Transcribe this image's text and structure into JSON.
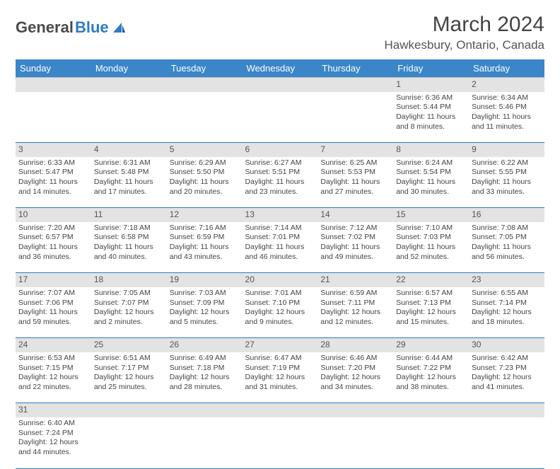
{
  "logo": {
    "text1": "General",
    "text2": "Blue"
  },
  "title": "March 2024",
  "location": "Hawkesbury, Ontario, Canada",
  "colors": {
    "header_bg": "#3a86c8",
    "daynum_bg": "#e3e3e3",
    "rule": "#2d7bc4"
  },
  "weekdays": [
    "Sunday",
    "Monday",
    "Tuesday",
    "Wednesday",
    "Thursday",
    "Friday",
    "Saturday"
  ],
  "weeks": [
    [
      null,
      null,
      null,
      null,
      null,
      {
        "n": "1",
        "sr": "Sunrise: 6:36 AM",
        "ss": "Sunset: 5:44 PM",
        "dl": "Daylight: 11 hours and 8 minutes."
      },
      {
        "n": "2",
        "sr": "Sunrise: 6:34 AM",
        "ss": "Sunset: 5:46 PM",
        "dl": "Daylight: 11 hours and 11 minutes."
      }
    ],
    [
      {
        "n": "3",
        "sr": "Sunrise: 6:33 AM",
        "ss": "Sunset: 5:47 PM",
        "dl": "Daylight: 11 hours and 14 minutes."
      },
      {
        "n": "4",
        "sr": "Sunrise: 6:31 AM",
        "ss": "Sunset: 5:48 PM",
        "dl": "Daylight: 11 hours and 17 minutes."
      },
      {
        "n": "5",
        "sr": "Sunrise: 6:29 AM",
        "ss": "Sunset: 5:50 PM",
        "dl": "Daylight: 11 hours and 20 minutes."
      },
      {
        "n": "6",
        "sr": "Sunrise: 6:27 AM",
        "ss": "Sunset: 5:51 PM",
        "dl": "Daylight: 11 hours and 23 minutes."
      },
      {
        "n": "7",
        "sr": "Sunrise: 6:25 AM",
        "ss": "Sunset: 5:53 PM",
        "dl": "Daylight: 11 hours and 27 minutes."
      },
      {
        "n": "8",
        "sr": "Sunrise: 6:24 AM",
        "ss": "Sunset: 5:54 PM",
        "dl": "Daylight: 11 hours and 30 minutes."
      },
      {
        "n": "9",
        "sr": "Sunrise: 6:22 AM",
        "ss": "Sunset: 5:55 PM",
        "dl": "Daylight: 11 hours and 33 minutes."
      }
    ],
    [
      {
        "n": "10",
        "sr": "Sunrise: 7:20 AM",
        "ss": "Sunset: 6:57 PM",
        "dl": "Daylight: 11 hours and 36 minutes."
      },
      {
        "n": "11",
        "sr": "Sunrise: 7:18 AM",
        "ss": "Sunset: 6:58 PM",
        "dl": "Daylight: 11 hours and 40 minutes."
      },
      {
        "n": "12",
        "sr": "Sunrise: 7:16 AM",
        "ss": "Sunset: 6:59 PM",
        "dl": "Daylight: 11 hours and 43 minutes."
      },
      {
        "n": "13",
        "sr": "Sunrise: 7:14 AM",
        "ss": "Sunset: 7:01 PM",
        "dl": "Daylight: 11 hours and 46 minutes."
      },
      {
        "n": "14",
        "sr": "Sunrise: 7:12 AM",
        "ss": "Sunset: 7:02 PM",
        "dl": "Daylight: 11 hours and 49 minutes."
      },
      {
        "n": "15",
        "sr": "Sunrise: 7:10 AM",
        "ss": "Sunset: 7:03 PM",
        "dl": "Daylight: 11 hours and 52 minutes."
      },
      {
        "n": "16",
        "sr": "Sunrise: 7:08 AM",
        "ss": "Sunset: 7:05 PM",
        "dl": "Daylight: 11 hours and 56 minutes."
      }
    ],
    [
      {
        "n": "17",
        "sr": "Sunrise: 7:07 AM",
        "ss": "Sunset: 7:06 PM",
        "dl": "Daylight: 11 hours and 59 minutes."
      },
      {
        "n": "18",
        "sr": "Sunrise: 7:05 AM",
        "ss": "Sunset: 7:07 PM",
        "dl": "Daylight: 12 hours and 2 minutes."
      },
      {
        "n": "19",
        "sr": "Sunrise: 7:03 AM",
        "ss": "Sunset: 7:09 PM",
        "dl": "Daylight: 12 hours and 5 minutes."
      },
      {
        "n": "20",
        "sr": "Sunrise: 7:01 AM",
        "ss": "Sunset: 7:10 PM",
        "dl": "Daylight: 12 hours and 9 minutes."
      },
      {
        "n": "21",
        "sr": "Sunrise: 6:59 AM",
        "ss": "Sunset: 7:11 PM",
        "dl": "Daylight: 12 hours and 12 minutes."
      },
      {
        "n": "22",
        "sr": "Sunrise: 6:57 AM",
        "ss": "Sunset: 7:13 PM",
        "dl": "Daylight: 12 hours and 15 minutes."
      },
      {
        "n": "23",
        "sr": "Sunrise: 6:55 AM",
        "ss": "Sunset: 7:14 PM",
        "dl": "Daylight: 12 hours and 18 minutes."
      }
    ],
    [
      {
        "n": "24",
        "sr": "Sunrise: 6:53 AM",
        "ss": "Sunset: 7:15 PM",
        "dl": "Daylight: 12 hours and 22 minutes."
      },
      {
        "n": "25",
        "sr": "Sunrise: 6:51 AM",
        "ss": "Sunset: 7:17 PM",
        "dl": "Daylight: 12 hours and 25 minutes."
      },
      {
        "n": "26",
        "sr": "Sunrise: 6:49 AM",
        "ss": "Sunset: 7:18 PM",
        "dl": "Daylight: 12 hours and 28 minutes."
      },
      {
        "n": "27",
        "sr": "Sunrise: 6:47 AM",
        "ss": "Sunset: 7:19 PM",
        "dl": "Daylight: 12 hours and 31 minutes."
      },
      {
        "n": "28",
        "sr": "Sunrise: 6:46 AM",
        "ss": "Sunset: 7:20 PM",
        "dl": "Daylight: 12 hours and 34 minutes."
      },
      {
        "n": "29",
        "sr": "Sunrise: 6:44 AM",
        "ss": "Sunset: 7:22 PM",
        "dl": "Daylight: 12 hours and 38 minutes."
      },
      {
        "n": "30",
        "sr": "Sunrise: 6:42 AM",
        "ss": "Sunset: 7:23 PM",
        "dl": "Daylight: 12 hours and 41 minutes."
      }
    ],
    [
      {
        "n": "31",
        "sr": "Sunrise: 6:40 AM",
        "ss": "Sunset: 7:24 PM",
        "dl": "Daylight: 12 hours and 44 minutes."
      },
      null,
      null,
      null,
      null,
      null,
      null
    ]
  ]
}
